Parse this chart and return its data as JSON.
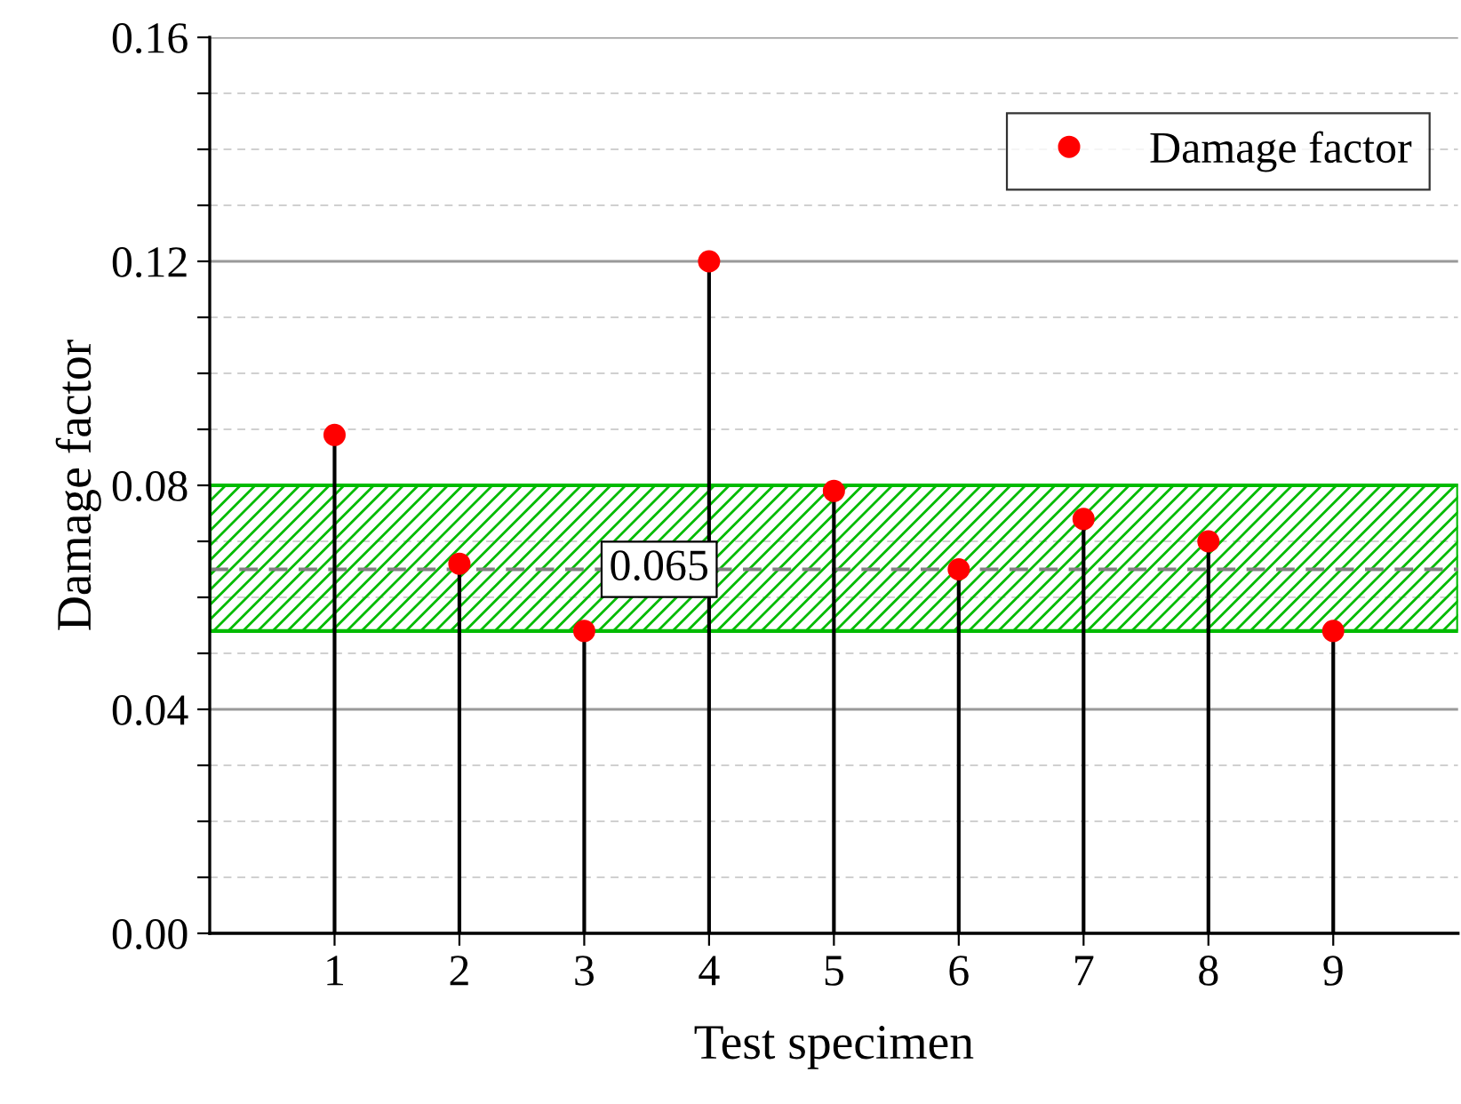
{
  "chart_data": {
    "type": "lollipop",
    "xlabel": "Test specimen",
    "ylabel": "Damage factor",
    "x": [
      1,
      2,
      3,
      4,
      5,
      6,
      7,
      8,
      9
    ],
    "series": [
      {
        "name": "Damage factor",
        "color": "#ff0000",
        "values": [
          0.089,
          0.066,
          0.054,
          0.12,
          0.079,
          0.065,
          0.074,
          0.07,
          0.054
        ]
      }
    ],
    "xlim": [
      0,
      10
    ],
    "xticks": [
      1,
      2,
      3,
      4,
      5,
      6,
      7,
      8,
      9
    ],
    "ylim": [
      0,
      0.16
    ],
    "yticks": [
      {
        "value": 0,
        "label": "0.00"
      },
      {
        "value": 0.01,
        "label": null
      },
      {
        "value": 0.02,
        "label": null
      },
      {
        "value": 0.03,
        "label": null
      },
      {
        "value": 0.04,
        "label": "0.04"
      },
      {
        "value": 0.05,
        "label": null
      },
      {
        "value": 0.06,
        "label": null
      },
      {
        "value": 0.07,
        "label": null
      },
      {
        "value": 0.08,
        "label": "0.08"
      },
      {
        "value": 0.09,
        "label": null
      },
      {
        "value": 0.1,
        "label": null
      },
      {
        "value": 0.11,
        "label": null
      },
      {
        "value": 0.12,
        "label": "0.12"
      },
      {
        "value": 0.13,
        "label": null
      },
      {
        "value": 0.14,
        "label": null
      },
      {
        "value": 0.15,
        "label": null
      },
      {
        "value": 0.16,
        "label": "0.16"
      }
    ],
    "ref_lines": [
      {
        "axis": "y",
        "value": 0.065,
        "label": "0.065",
        "color": "#808080",
        "line_style": "dashed"
      }
    ],
    "bands": [
      {
        "axis": "y",
        "from": 0.054,
        "to": 0.08,
        "color": "#00bb00"
      }
    ],
    "grid": "y",
    "legend": "top right",
    "marker": "circle"
  }
}
